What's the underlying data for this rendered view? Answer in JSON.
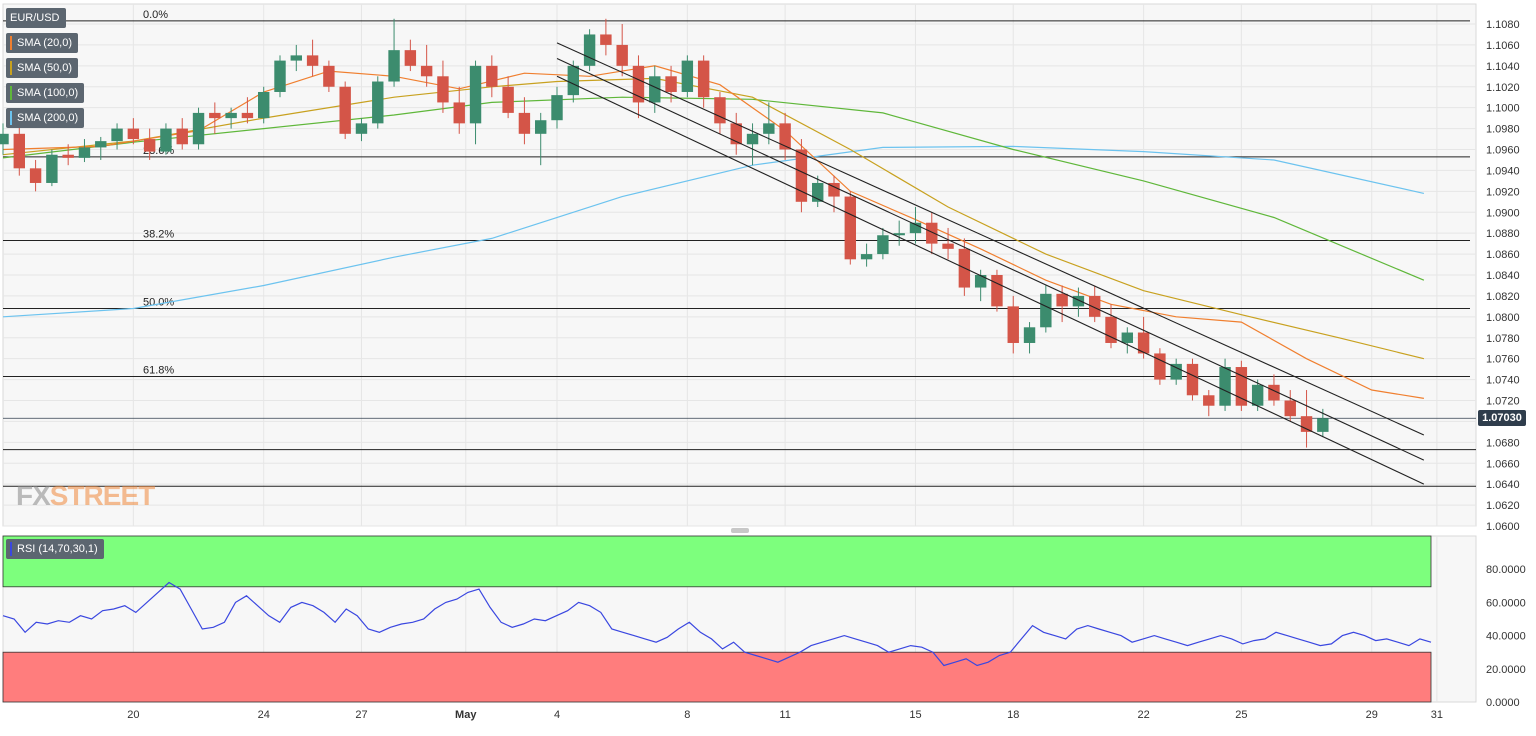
{
  "instrument": "EUR/USD",
  "watermark": {
    "left": "FX",
    "right": "STREET"
  },
  "legend": [
    {
      "label": "SMA (20,0)",
      "color": "#f07f2f"
    },
    {
      "label": "SMA (50,0)",
      "color": "#c8a11f"
    },
    {
      "label": "SMA (100,0)",
      "color": "#5fb73a"
    },
    {
      "label": "SMA (200,0)",
      "color": "#6cc3ef"
    }
  ],
  "current_price_label": "1.07030",
  "chart_data": [
    {
      "type": "candlestick",
      "y_axis_labels": [
        "1.1080",
        "1.1060",
        "1.1040",
        "1.1020",
        "1.1000",
        "1.0980",
        "1.0960",
        "1.0940",
        "1.0920",
        "1.0900",
        "1.0880",
        "1.0860",
        "1.0840",
        "1.0820",
        "1.0800",
        "1.0780",
        "1.0760",
        "1.0740",
        "1.0720",
        "1.0700",
        "1.0680",
        "1.0660",
        "1.0640",
        "1.0620",
        "1.0600"
      ],
      "ylim": [
        1.06,
        1.108
      ],
      "x_tick_labels": [
        {
          "label": "20",
          "day": 4
        },
        {
          "label": "24",
          "day": 8
        },
        {
          "label": "27",
          "day": 11
        },
        {
          "label": "May",
          "day": 14.2
        },
        {
          "label": "4",
          "day": 17
        },
        {
          "label": "8",
          "day": 21
        },
        {
          "label": "11",
          "day": 24
        },
        {
          "label": "15",
          "day": 28
        },
        {
          "label": "18",
          "day": 31
        },
        {
          "label": "22",
          "day": 35
        },
        {
          "label": "25",
          "day": 38
        },
        {
          "label": "29",
          "day": 42
        },
        {
          "label": "31",
          "day": 44
        }
      ],
      "fibonacci": [
        {
          "label": "0.0%",
          "price": 1.1083
        },
        {
          "label": "23.6%",
          "price": 1.0953
        },
        {
          "label": "38.2%",
          "price": 1.0873
        },
        {
          "label": "50.0%",
          "price": 1.0808
        },
        {
          "label": "61.8%",
          "price": 1.0743
        }
      ],
      "horizontal_levels": [
        1.0703,
        1.0673,
        1.0638
      ],
      "channel_lines": [
        [
          {
            "day": 17.0,
            "price": 1.1062
          },
          {
            "day": 43.6,
            "price": 1.0687
          }
        ],
        [
          {
            "day": 17.0,
            "price": 1.1047
          },
          {
            "day": 43.6,
            "price": 1.0663
          }
        ],
        [
          {
            "day": 17.0,
            "price": 1.103
          },
          {
            "day": 43.6,
            "price": 1.064
          }
        ]
      ],
      "sma200": [
        [
          0,
          1.08
        ],
        [
          4,
          1.0808
        ],
        [
          8,
          1.083
        ],
        [
          12,
          1.0857
        ],
        [
          15,
          1.0875
        ],
        [
          19,
          1.0915
        ],
        [
          23,
          1.0945
        ],
        [
          27,
          1.0962
        ],
        [
          31,
          1.0963
        ],
        [
          35,
          1.0958
        ],
        [
          39,
          1.095
        ],
        [
          43.6,
          1.0918
        ]
      ],
      "sma100": [
        [
          0,
          1.0952
        ],
        [
          4,
          1.0967
        ],
        [
          8,
          1.098
        ],
        [
          12,
          1.0993
        ],
        [
          15,
          1.1005
        ],
        [
          19,
          1.101
        ],
        [
          23,
          1.1008
        ],
        [
          27,
          1.0995
        ],
        [
          31,
          1.096
        ],
        [
          35,
          1.093
        ],
        [
          39,
          1.0895
        ],
        [
          43.6,
          1.0835
        ]
      ],
      "sma50": [
        [
          0,
          1.0955
        ],
        [
          4,
          1.0968
        ],
        [
          8,
          1.099
        ],
        [
          12,
          1.101
        ],
        [
          15,
          1.102
        ],
        [
          17,
          1.1025
        ],
        [
          20,
          1.1028
        ],
        [
          23,
          1.101
        ],
        [
          26,
          1.096
        ],
        [
          29,
          1.0905
        ],
        [
          32,
          1.086
        ],
        [
          35,
          1.0825
        ],
        [
          38,
          1.0802
        ],
        [
          41,
          1.078
        ],
        [
          43.6,
          1.076
        ]
      ],
      "sma20": [
        [
          0,
          1.096
        ],
        [
          3,
          1.0963
        ],
        [
          6,
          1.0978
        ],
        [
          8,
          1.1015
        ],
        [
          10,
          1.1035
        ],
        [
          12,
          1.103
        ],
        [
          14,
          1.1018
        ],
        [
          16,
          1.1033
        ],
        [
          18,
          1.103
        ],
        [
          20,
          1.104
        ],
        [
          22,
          1.1022
        ],
        [
          24,
          1.0978
        ],
        [
          26,
          1.092
        ],
        [
          28,
          1.0893
        ],
        [
          30,
          1.0865
        ],
        [
          32,
          1.0835
        ],
        [
          34,
          1.0812
        ],
        [
          36,
          1.08
        ],
        [
          38,
          1.0795
        ],
        [
          40,
          1.076
        ],
        [
          42,
          1.073
        ],
        [
          43.6,
          1.0722
        ]
      ],
      "candles_4h_approx": [
        [
          0.0,
          1.0965,
          1.0985,
          1.0955,
          1.0975
        ],
        [
          0.5,
          1.0975,
          1.099,
          1.0935,
          1.0942
        ],
        [
          1.0,
          1.0942,
          1.095,
          1.092,
          1.0928
        ],
        [
          1.5,
          1.0928,
          1.096,
          1.0925,
          1.0955
        ],
        [
          2.0,
          1.0955,
          1.0965,
          1.0945,
          1.0952
        ],
        [
          2.5,
          1.0952,
          1.097,
          1.0948,
          1.0962
        ],
        [
          3.0,
          1.0962,
          1.0972,
          1.095,
          1.0968
        ],
        [
          3.5,
          1.0968,
          1.0985,
          1.096,
          1.098
        ],
        [
          4.0,
          1.098,
          1.099,
          1.0965,
          1.097
        ],
        [
          4.5,
          1.097,
          1.098,
          1.095,
          1.0958
        ],
        [
          5.0,
          1.0958,
          1.0985,
          1.0955,
          1.098
        ],
        [
          5.5,
          1.098,
          1.099,
          1.096,
          1.0965
        ],
        [
          6.0,
          1.0965,
          1.1,
          1.096,
          1.0995
        ],
        [
          6.5,
          1.0995,
          1.1005,
          1.0975,
          1.099
        ],
        [
          7.0,
          1.099,
          1.1,
          1.098,
          1.0995
        ],
        [
          7.5,
          1.0995,
          1.101,
          1.0985,
          1.099
        ],
        [
          8.0,
          1.099,
          1.102,
          1.0985,
          1.1015
        ],
        [
          8.5,
          1.1015,
          1.105,
          1.101,
          1.1045
        ],
        [
          9.0,
          1.1045,
          1.106,
          1.1035,
          1.105
        ],
        [
          9.5,
          1.105,
          1.1065,
          1.103,
          1.104
        ],
        [
          10.0,
          1.104,
          1.1045,
          1.1015,
          1.102
        ],
        [
          10.5,
          1.102,
          1.1025,
          1.097,
          1.0975
        ],
        [
          11.0,
          1.0975,
          1.099,
          1.0968,
          1.0985
        ],
        [
          11.5,
          1.0985,
          1.103,
          1.098,
          1.1025
        ],
        [
          12.0,
          1.1025,
          1.1085,
          1.102,
          1.1055
        ],
        [
          12.5,
          1.1055,
          1.1065,
          1.1035,
          1.104
        ],
        [
          13.0,
          1.104,
          1.106,
          1.102,
          1.103
        ],
        [
          13.5,
          1.103,
          1.1045,
          1.0995,
          1.1005
        ],
        [
          14.0,
          1.1005,
          1.102,
          1.0975,
          1.0985
        ],
        [
          14.5,
          1.0985,
          1.1045,
          1.0965,
          1.104
        ],
        [
          15.0,
          1.104,
          1.105,
          1.101,
          1.102
        ],
        [
          15.5,
          1.102,
          1.103,
          1.099,
          1.0995
        ],
        [
          16.0,
          1.0995,
          1.101,
          1.0965,
          1.0975
        ],
        [
          16.5,
          1.0975,
          1.0995,
          1.0945,
          1.0988
        ],
        [
          17.0,
          1.0988,
          1.102,
          1.098,
          1.1012
        ],
        [
          17.5,
          1.1012,
          1.1045,
          1.1005,
          1.104
        ],
        [
          18.0,
          1.104,
          1.1075,
          1.1035,
          1.107
        ],
        [
          18.5,
          1.107,
          1.1085,
          1.105,
          1.106
        ],
        [
          19.0,
          1.106,
          1.108,
          1.103,
          1.104
        ],
        [
          19.5,
          1.104,
          1.105,
          1.099,
          1.1005
        ],
        [
          20.0,
          1.1005,
          1.104,
          1.0995,
          1.103
        ],
        [
          20.5,
          1.103,
          1.104,
          1.1005,
          1.1015
        ],
        [
          21.0,
          1.1015,
          1.105,
          1.101,
          1.1045
        ],
        [
          21.5,
          1.1045,
          1.105,
          1.1,
          1.101
        ],
        [
          22.0,
          1.101,
          1.1015,
          1.0975,
          1.0985
        ],
        [
          22.5,
          1.0985,
          1.0995,
          1.0955,
          1.0965
        ],
        [
          23.0,
          1.0965,
          1.0985,
          1.0945,
          1.0975
        ],
        [
          23.5,
          1.0975,
          1.1005,
          1.0965,
          1.0985
        ],
        [
          24.0,
          1.0985,
          1.0995,
          1.095,
          1.096
        ],
        [
          24.5,
          1.096,
          1.097,
          1.09,
          1.091
        ],
        [
          25.0,
          1.091,
          1.0935,
          1.0905,
          1.0928
        ],
        [
          25.5,
          1.0928,
          1.0935,
          1.09,
          1.0915
        ],
        [
          26.0,
          1.0915,
          1.092,
          1.085,
          1.0855
        ],
        [
          26.5,
          1.0855,
          1.087,
          1.0848,
          1.086
        ],
        [
          27.0,
          1.086,
          1.0885,
          1.0855,
          1.0878
        ],
        [
          27.5,
          1.0878,
          1.0892,
          1.0868,
          1.088
        ],
        [
          28.0,
          1.088,
          1.0905,
          1.087,
          1.089
        ],
        [
          28.5,
          1.089,
          1.09,
          1.086,
          1.087
        ],
        [
          29.0,
          1.087,
          1.0885,
          1.0855,
          1.0865
        ],
        [
          29.5,
          1.0865,
          1.0875,
          1.082,
          1.0828
        ],
        [
          30.0,
          1.0828,
          1.0845,
          1.0815,
          1.084
        ],
        [
          30.5,
          1.084,
          1.0845,
          1.0805,
          1.081
        ],
        [
          31.0,
          1.081,
          1.082,
          1.0765,
          1.0775
        ],
        [
          31.5,
          1.0775,
          1.0795,
          1.0765,
          1.079
        ],
        [
          32.0,
          1.079,
          1.083,
          1.0785,
          1.0822
        ],
        [
          32.5,
          1.0822,
          1.083,
          1.0795,
          1.081
        ],
        [
          33.0,
          1.081,
          1.0828,
          1.08,
          1.082
        ],
        [
          33.5,
          1.082,
          1.083,
          1.0795,
          1.08
        ],
        [
          34.0,
          1.08,
          1.0812,
          1.077,
          1.0775
        ],
        [
          34.5,
          1.0775,
          1.079,
          1.0765,
          1.0785
        ],
        [
          35.0,
          1.0785,
          1.08,
          1.076,
          1.0765
        ],
        [
          35.5,
          1.0765,
          1.077,
          1.0735,
          1.074
        ],
        [
          36.0,
          1.074,
          1.076,
          1.0735,
          1.0755
        ],
        [
          36.5,
          1.0755,
          1.076,
          1.072,
          1.0725
        ],
        [
          37.0,
          1.0725,
          1.073,
          1.0705,
          1.0715
        ],
        [
          37.5,
          1.0715,
          1.076,
          1.071,
          1.0752
        ],
        [
          38.0,
          1.0752,
          1.0758,
          1.071,
          1.0715
        ],
        [
          38.5,
          1.0715,
          1.074,
          1.071,
          1.0735
        ],
        [
          39.0,
          1.0735,
          1.0745,
          1.0715,
          1.072
        ],
        [
          39.5,
          1.072,
          1.073,
          1.07,
          1.0705
        ],
        [
          40.0,
          1.0705,
          1.073,
          1.0675,
          1.069
        ],
        [
          40.5,
          1.069,
          1.0712,
          1.0685,
          1.0703
        ]
      ]
    },
    {
      "type": "line",
      "title": "RSI (14,70,30,1)",
      "y_axis_labels": [
        "80.0000",
        "60.0000",
        "40.0000",
        "20.0000",
        "0.0000"
      ],
      "ylim": [
        0,
        100
      ],
      "overbought": 70,
      "oversold": 30,
      "series": [
        {
          "values": [
            52,
            50,
            42,
            48,
            47,
            49,
            48,
            52,
            50,
            55,
            56,
            58,
            54,
            60,
            66,
            72,
            68,
            56,
            44,
            45,
            48,
            60,
            64,
            58,
            52,
            48,
            57,
            60,
            58,
            54,
            48,
            56,
            52,
            44,
            42,
            45,
            47,
            48,
            50,
            56,
            60,
            62,
            66,
            68,
            57,
            48,
            45,
            47,
            50,
            49,
            52,
            55,
            60,
            58,
            54,
            44,
            42,
            40,
            38,
            36,
            39,
            44,
            48,
            42,
            38,
            32,
            36,
            30,
            28,
            26,
            24,
            27,
            30,
            34,
            36,
            38,
            40,
            38,
            36,
            34,
            30,
            32,
            34,
            33,
            30,
            22,
            24,
            26,
            22,
            24,
            28,
            30,
            38,
            46,
            42,
            40,
            38,
            44,
            46,
            44,
            42,
            40,
            36,
            38,
            40,
            38,
            36,
            34,
            36,
            38,
            40,
            38,
            35,
            37,
            38,
            42,
            40,
            38,
            36,
            34,
            35,
            40,
            42,
            40,
            37,
            38,
            36,
            34,
            38,
            36
          ]
        }
      ]
    }
  ]
}
